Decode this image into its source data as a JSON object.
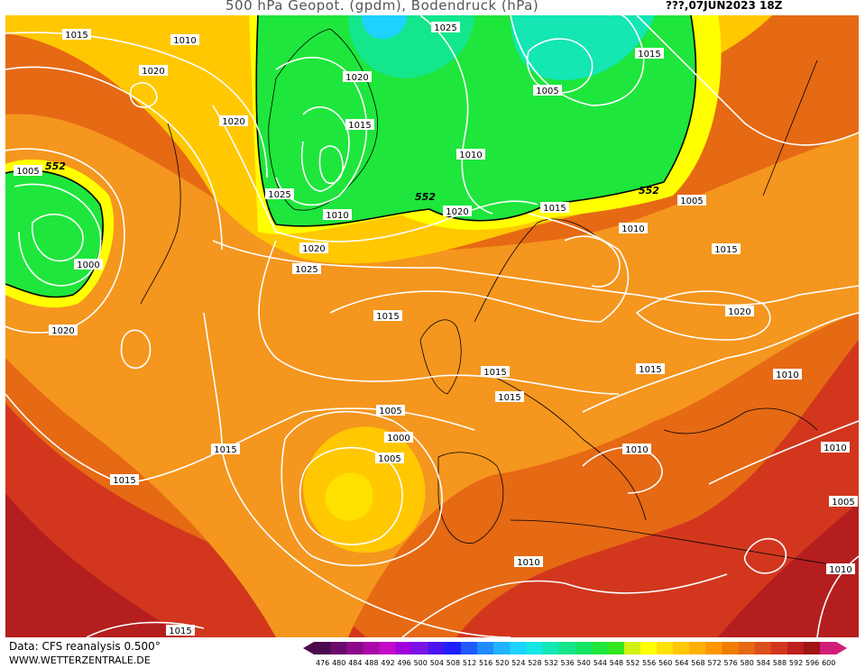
{
  "header": {
    "title": "500 hPa Geopot. (gpdm), Bodendruck (hPa)",
    "date": "???,07JUN2023 18Z"
  },
  "footer": {
    "source": "Data: CFS reanalysis 0.500°",
    "site": "WWW.WETTERZENTRALE.DE"
  },
  "legend": {
    "labels": [
      "476",
      "480",
      "484",
      "488",
      "492",
      "496",
      "500",
      "504",
      "508",
      "512",
      "516",
      "520",
      "524",
      "528",
      "532",
      "536",
      "540",
      "544",
      "548",
      "552",
      "556",
      "560",
      "564",
      "568",
      "572",
      "576",
      "580",
      "584",
      "588",
      "592",
      "596",
      "600"
    ],
    "colors": [
      "#4b0a4b",
      "#6a0a6a",
      "#8a0a8a",
      "#a80aa8",
      "#c40ac8",
      "#a000dc",
      "#7a14e6",
      "#4a14f0",
      "#1e1eff",
      "#1e5aff",
      "#1e8cff",
      "#1eb4ff",
      "#1ed2ff",
      "#14e6e6",
      "#14e6b4",
      "#14e68c",
      "#14e664",
      "#1ee63c",
      "#32e61e",
      "#d2f014",
      "#ffff00",
      "#ffe100",
      "#ffc800",
      "#ffaf00",
      "#ff9600",
      "#f07d00",
      "#e66914",
      "#dc501e",
      "#d2371e",
      "#be1e1e",
      "#a01414",
      "#d21e78"
    ]
  },
  "map": {
    "contour_label": "552",
    "isobar_labels": [
      "1015",
      "1010",
      "1020",
      "1025",
      "1005",
      "1000",
      "1020",
      "1015",
      "1010",
      "1005",
      "1015",
      "1020",
      "1025",
      "1010",
      "1020",
      "1015",
      "1005",
      "1010",
      "1015",
      "1020",
      "1025",
      "1020",
      "1015",
      "1020",
      "1015",
      "1015",
      "1015",
      "1010",
      "1005",
      "1000",
      "1015",
      "1010",
      "1010",
      "1005",
      "1005",
      "1015",
      "1010",
      "1010",
      "1015"
    ],
    "colors": {
      "green": "#1ee63c",
      "cyan": "#14e6b4",
      "yellow": "#ffff00",
      "gold": "#ffc800",
      "orange": "#f5961e",
      "darkorange": "#e66914",
      "red": "#d2371e",
      "darkred": "#a01414"
    }
  }
}
